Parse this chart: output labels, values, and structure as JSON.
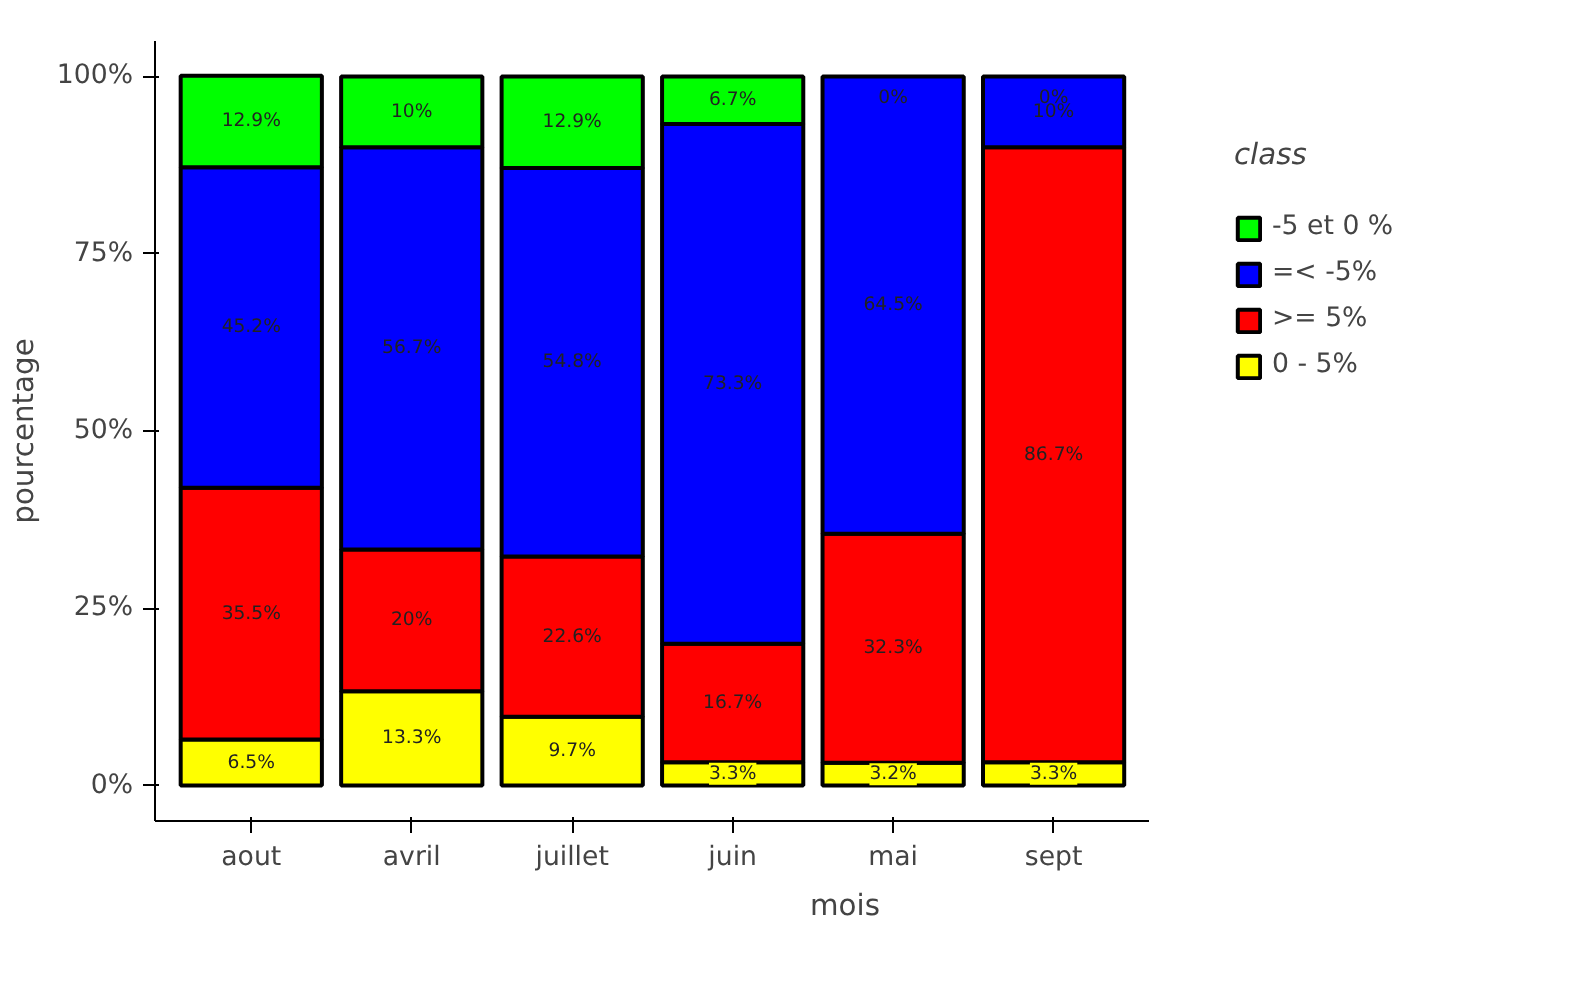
{
  "chart_data": {
    "type": "bar",
    "stacked": true,
    "xlabel": "mois",
    "ylabel": "pourcentage",
    "legend_title": "class",
    "legend": "right",
    "grid": false,
    "categories": [
      "aout",
      "avril",
      "juillet",
      "juin",
      "mai",
      "sept"
    ],
    "ylim": [
      -5,
      105
    ],
    "yticks": [
      {
        "value": 0,
        "label": "0%"
      },
      {
        "value": 25,
        "label": "25%"
      },
      {
        "value": 50,
        "label": "50%"
      },
      {
        "value": 75,
        "label": "75%"
      },
      {
        "value": 100,
        "label": "100%"
      }
    ],
    "series": [
      {
        "name": "0 - 5%",
        "color": "#ffff00",
        "values": [
          6.5,
          13.3,
          9.7,
          3.3,
          3.2,
          3.3
        ],
        "value_labels": [
          "6.5%",
          "13.3%",
          "9.7%",
          "3.3%",
          "3.2%",
          "3.3%"
        ]
      },
      {
        "name": ">= 5%",
        "color": "#ff0000",
        "values": [
          35.5,
          20,
          22.6,
          16.7,
          32.3,
          86.7
        ],
        "value_labels": [
          "35.5%",
          "20%",
          "22.6%",
          "16.7%",
          "32.3%",
          "86.7%"
        ]
      },
      {
        "name": "=< -5%",
        "color": "#0000ff",
        "values": [
          45.2,
          56.7,
          54.8,
          73.3,
          64.5,
          10
        ],
        "value_labels": [
          "45.2%",
          "56.7%",
          "54.8%",
          "73.3%",
          "64.5%",
          "10%"
        ]
      },
      {
        "name": "-5 et 0 %",
        "color": "#00ff00",
        "values": [
          12.9,
          10,
          12.9,
          6.7,
          0,
          0
        ],
        "value_labels": [
          "12.9%",
          "10%",
          "12.9%",
          "6.7%",
          "0%",
          "0%"
        ]
      }
    ]
  }
}
